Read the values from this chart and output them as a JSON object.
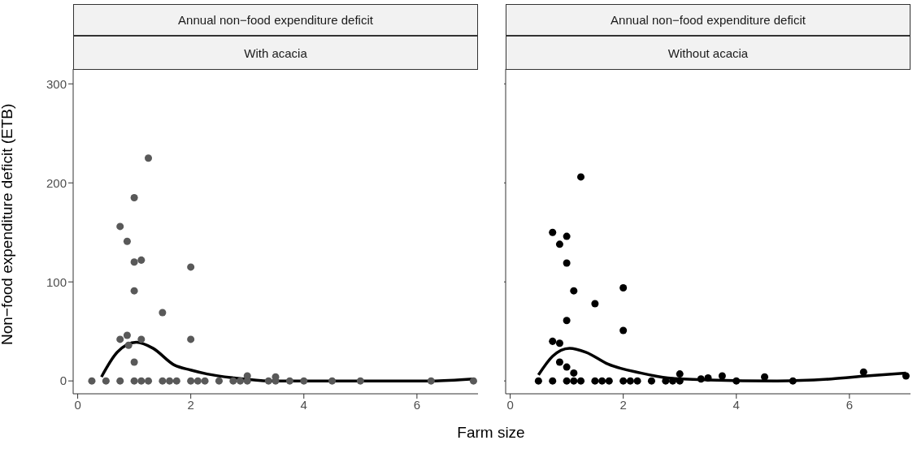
{
  "chart_data": [
    {
      "type": "scatter",
      "title": "Annual non−food expenditure deficit",
      "subtitle": "With acacia",
      "xlabel": "Farm size",
      "ylabel": "Non−food expenditure deficit (ETB)",
      "xlim": [
        -0.08,
        7.08
      ],
      "xticks": [
        0,
        2,
        4,
        6
      ],
      "ylim": [
        -13,
        315
      ],
      "yticks": [
        0,
        100,
        200,
        300
      ],
      "series": [
        {
          "marker": "circle",
          "color": "#595959",
          "x": [
            1.25,
            1,
            0.75,
            0.875,
            1,
            1.125,
            2,
            1,
            1.5,
            0.75,
            0.875,
            1.125,
            2,
            0.9,
            1,
            0.25,
            0.5,
            0.75,
            1,
            1.125,
            1.25,
            1.5,
            1.625,
            1.75,
            2,
            2.125,
            2.25,
            2.5,
            2.75,
            2.875,
            3,
            3,
            3.375,
            3.5,
            3.5,
            3.75,
            4,
            4.5,
            5,
            6.25,
            7
          ],
          "values": [
            225,
            185,
            156,
            141,
            120,
            122,
            115,
            91,
            69,
            42,
            46,
            42,
            42,
            36,
            19,
            0,
            0,
            0,
            0,
            0,
            0,
            0,
            0,
            0,
            0,
            0,
            0,
            0,
            0,
            0,
            0,
            5,
            0,
            0,
            4,
            0,
            0,
            0,
            0,
            0,
            0
          ]
        },
        {
          "type": "line",
          "marker": "none",
          "color": "#000000",
          "x": [
            0.42,
            0.7,
            1.04,
            1.33,
            1.71,
            2.0,
            2.29,
            2.77,
            3.39,
            4.68,
            6.25,
            7.0
          ],
          "values": [
            4,
            29,
            39,
            33,
            16,
            11,
            7,
            3,
            0,
            0,
            0,
            2
          ]
        }
      ]
    },
    {
      "type": "scatter",
      "title": "Annual non−food expenditure deficit",
      "subtitle": "Without acacia",
      "tick_labels": "x",
      "xlim": [
        -0.08,
        7.08
      ],
      "xticks": [
        0,
        2,
        4,
        6
      ],
      "ylim": [
        -13,
        315
      ],
      "yticks": [
        0,
        100,
        200,
        300
      ],
      "series": [
        {
          "marker": "circle",
          "color": "#000000",
          "x": [
            1.25,
            0.75,
            1,
            0.875,
            1,
            2,
            1.125,
            1.5,
            1,
            2,
            0.75,
            0.875,
            0.875,
            1,
            1.125,
            0.5,
            0.75,
            1,
            1.125,
            1.25,
            1.5,
            1.625,
            1.75,
            2,
            2.125,
            2.25,
            2.5,
            2.75,
            2.875,
            3,
            3,
            3.375,
            3.5,
            3.75,
            4,
            4.5,
            5,
            6.25,
            7
          ],
          "values": [
            206,
            150,
            146,
            138,
            119,
            94,
            91,
            78,
            61,
            51,
            40,
            38,
            19,
            14,
            8,
            0,
            0,
            0,
            0,
            0,
            0,
            0,
            0,
            0,
            0,
            0,
            0,
            0,
            0,
            0,
            7,
            2,
            3,
            5,
            0,
            4,
            0,
            9,
            5
          ]
        },
        {
          "type": "line",
          "marker": "none",
          "color": "#000000",
          "x": [
            0.5,
            0.75,
            1.05,
            1.34,
            1.73,
            2.31,
            2.79,
            3.51,
            4.72,
            5.68,
            6.3,
            7.0
          ],
          "values": [
            6,
            25,
            33,
            29,
            17,
            8,
            3,
            1,
            0,
            2,
            5,
            8
          ]
        }
      ]
    }
  ]
}
